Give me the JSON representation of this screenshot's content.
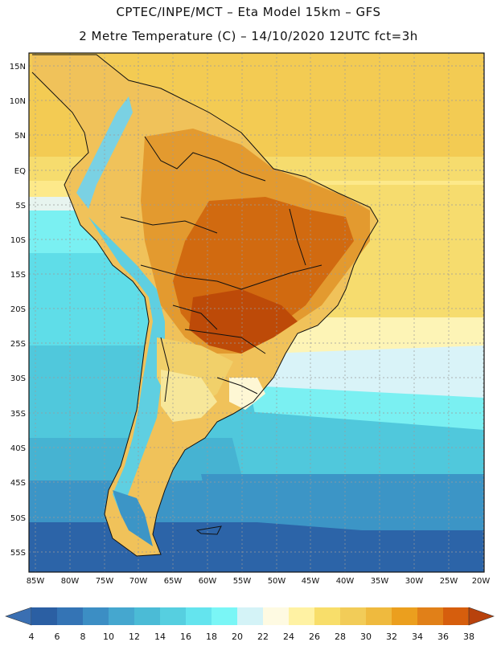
{
  "header": {
    "title_line1": "CPTEC/INPE/MCT –  Eta Model 15km – GFS",
    "title_line2": "2 Metre Temperature (C) – 14/10/2020 12UTC fct=3h"
  },
  "map": {
    "lat_labels": [
      "15N",
      "10N",
      "5N",
      "EQ",
      "5S",
      "10S",
      "15S",
      "20S",
      "25S",
      "30S",
      "35S",
      "40S",
      "45S",
      "50S",
      "55S"
    ],
    "lon_labels": [
      "85W",
      "80W",
      "75W",
      "70W",
      "65W",
      "60W",
      "55W",
      "50W",
      "45W",
      "40W",
      "35W",
      "30W",
      "25W",
      "20W"
    ]
  },
  "colorbar": {
    "ticks": [
      "4",
      "6",
      "8",
      "10",
      "12",
      "14",
      "16",
      "18",
      "20",
      "22",
      "24",
      "26",
      "28",
      "30",
      "32",
      "34",
      "36",
      "38"
    ],
    "colors": [
      "#2b5fa3",
      "#3474b5",
      "#3c8ec4",
      "#45a7cf",
      "#4bbbd6",
      "#56cfe0",
      "#64e4ee",
      "#7af6f6",
      "#d4f3f7",
      "#fefae2",
      "#fff2a3",
      "#f8de6a",
      "#f2cc58",
      "#efba3e",
      "#eb9f1e",
      "#e18018",
      "#d65e0d",
      "#c44806",
      "#b8420c"
    ]
  }
}
